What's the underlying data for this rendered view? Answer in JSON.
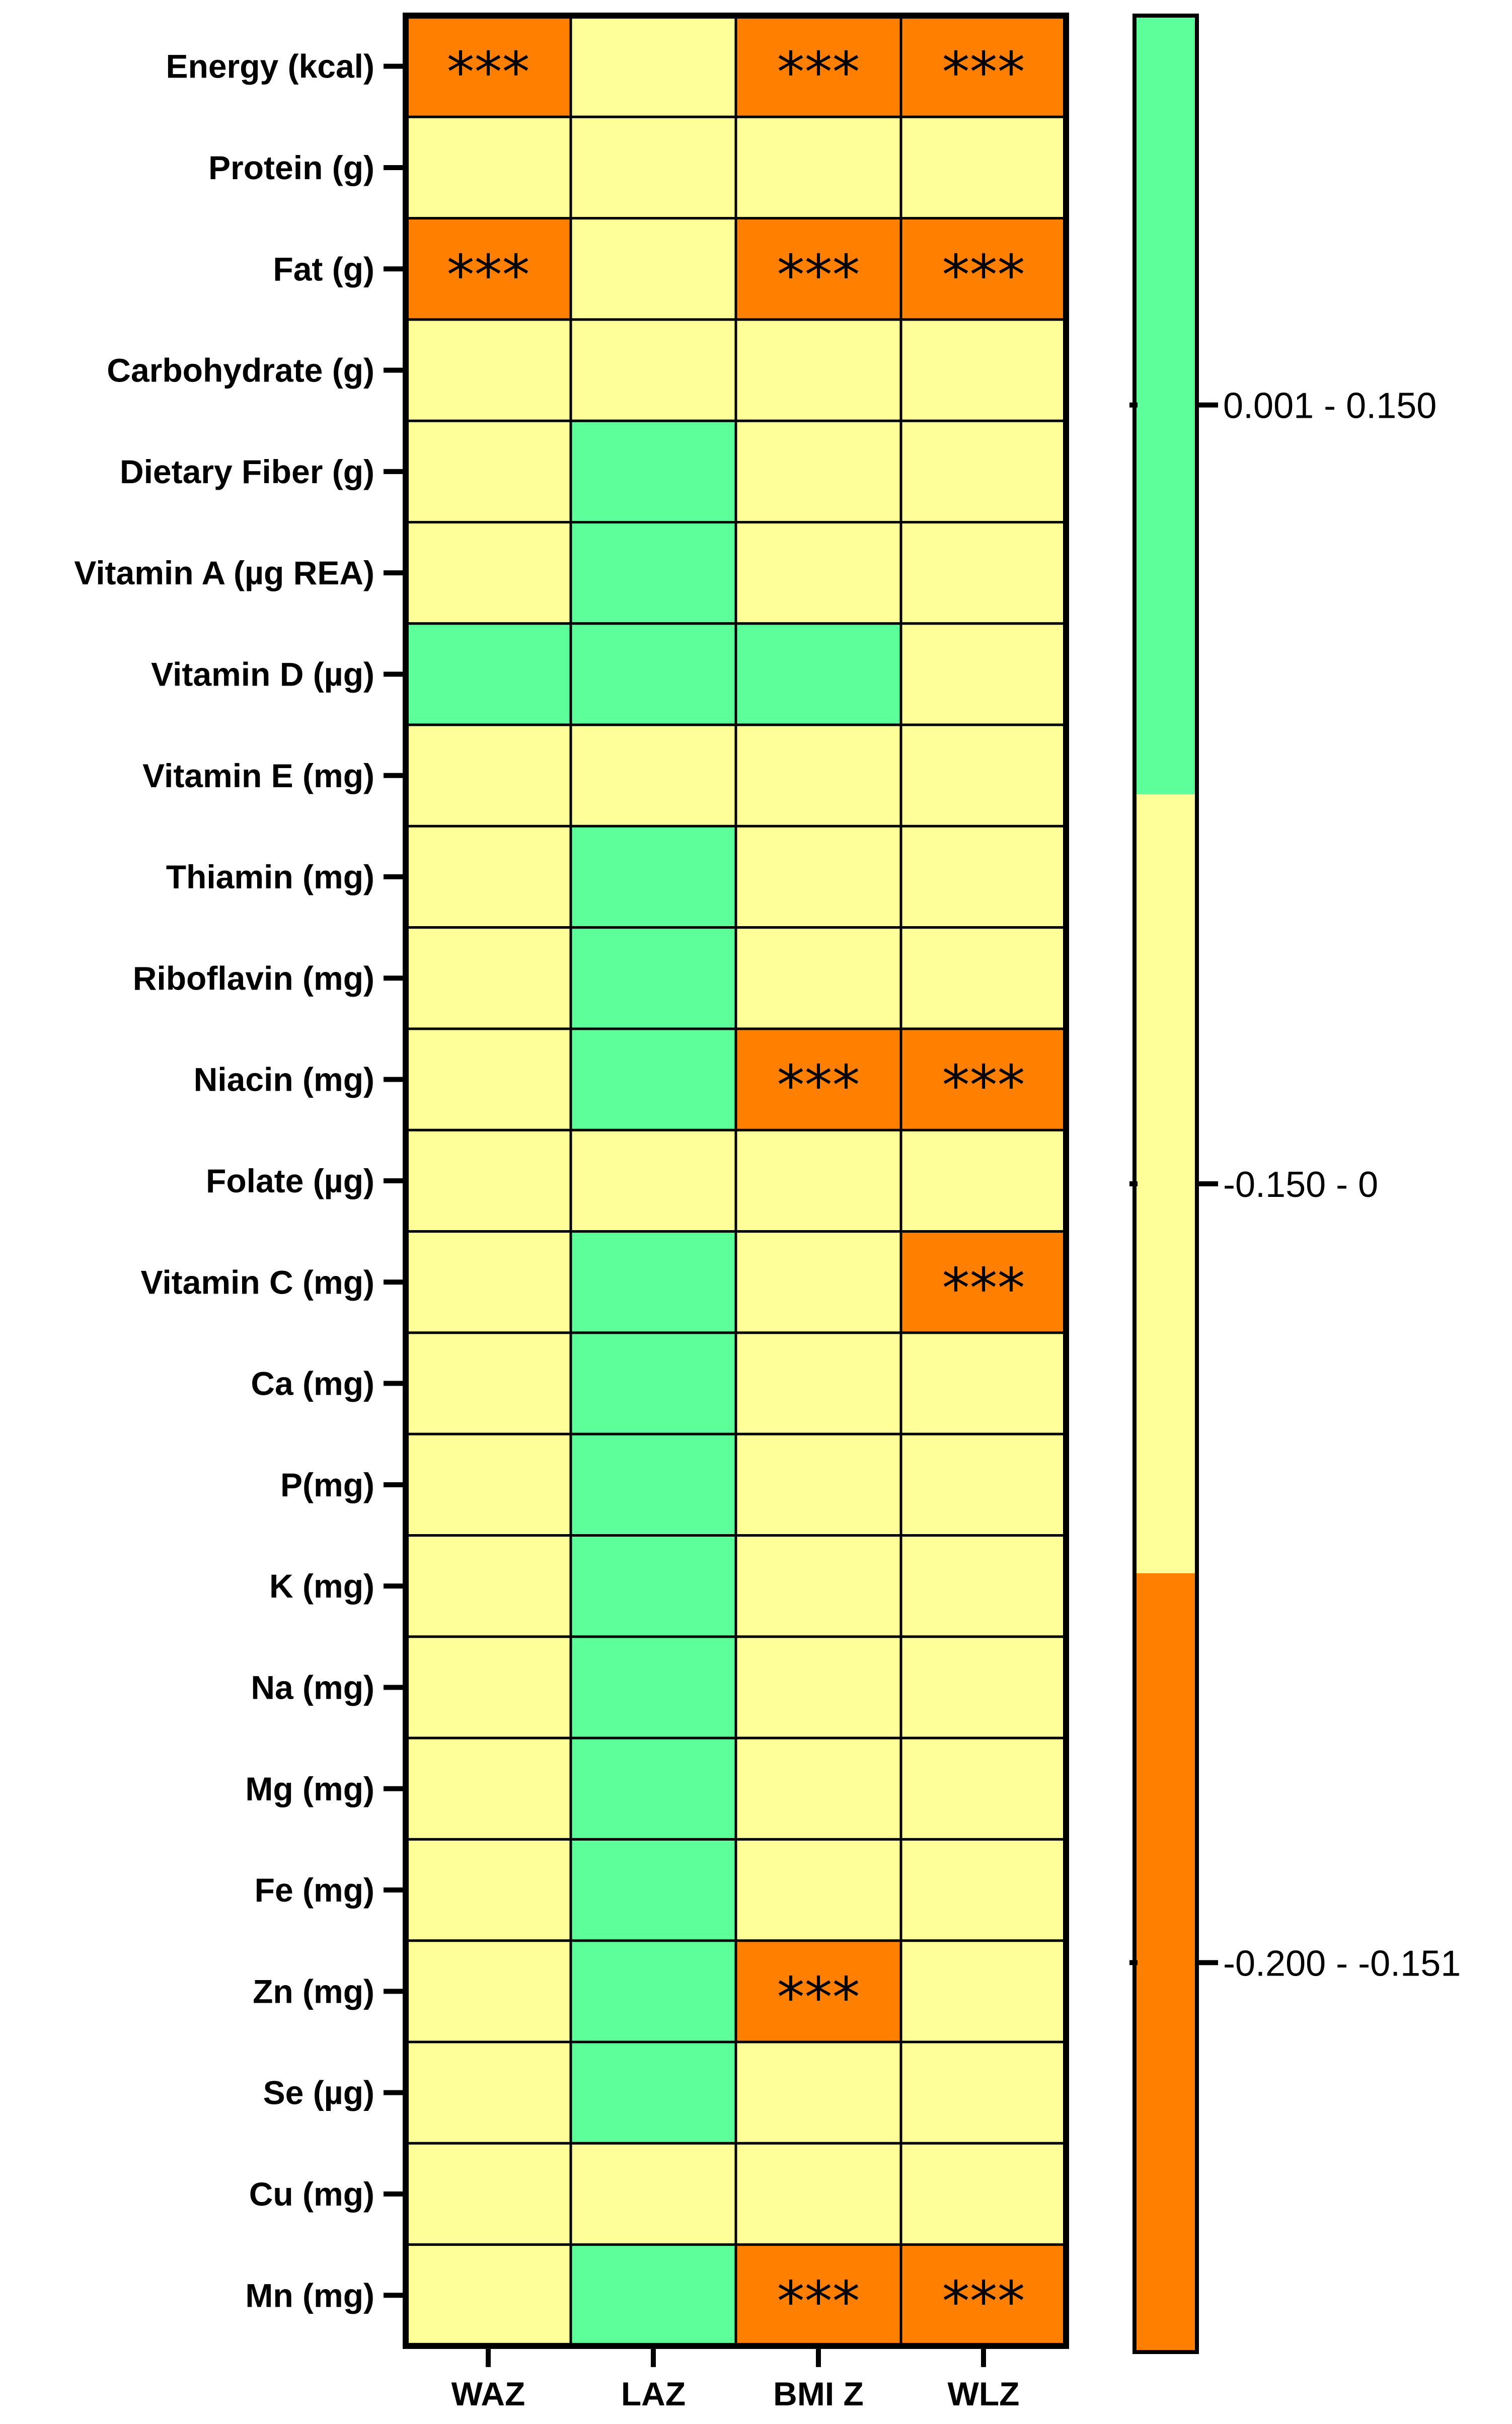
{
  "chart_data": {
    "type": "heatmap",
    "title": "",
    "xlabel": "",
    "ylabel": "",
    "columns": [
      "WAZ",
      "LAZ",
      "BMI Z",
      "WLZ"
    ],
    "rows": [
      "Energy (kcal)",
      "Protein (g)",
      "Fat (g)",
      "Carbohydrate (g)",
      "Dietary Fiber (g)",
      "Vitamin A (µg REA)",
      "Vitamin D (µg)",
      "Vitamin E (mg)",
      "Thiamin (mg)",
      "Riboflavin (mg)",
      "Niacin (mg)",
      "Folate (µg)",
      "Vitamin C (mg)",
      "Ca (mg)",
      "P(mg)",
      "K (mg)",
      "Na (mg)",
      "Mg (mg)",
      "Fe (mg)",
      "Zn (mg)",
      "Se (µg)",
      "Cu (mg)",
      "Mn (mg)"
    ],
    "cells": [
      [
        "low",
        "mid",
        "low",
        "low"
      ],
      [
        "mid",
        "mid",
        "mid",
        "mid"
      ],
      [
        "low",
        "mid",
        "low",
        "low"
      ],
      [
        "mid",
        "mid",
        "mid",
        "mid"
      ],
      [
        "mid",
        "high",
        "mid",
        "mid"
      ],
      [
        "mid",
        "high",
        "mid",
        "mid"
      ],
      [
        "high",
        "high",
        "high",
        "mid"
      ],
      [
        "mid",
        "mid",
        "mid",
        "mid"
      ],
      [
        "mid",
        "high",
        "mid",
        "mid"
      ],
      [
        "mid",
        "high",
        "mid",
        "mid"
      ],
      [
        "mid",
        "high",
        "low",
        "low"
      ],
      [
        "mid",
        "mid",
        "mid",
        "mid"
      ],
      [
        "mid",
        "high",
        "mid",
        "low"
      ],
      [
        "mid",
        "high",
        "mid",
        "mid"
      ],
      [
        "mid",
        "high",
        "mid",
        "mid"
      ],
      [
        "mid",
        "high",
        "mid",
        "mid"
      ],
      [
        "mid",
        "high",
        "mid",
        "mid"
      ],
      [
        "mid",
        "high",
        "mid",
        "mid"
      ],
      [
        "mid",
        "high",
        "mid",
        "mid"
      ],
      [
        "mid",
        "high",
        "low",
        "mid"
      ],
      [
        "mid",
        "high",
        "mid",
        "mid"
      ],
      [
        "mid",
        "mid",
        "mid",
        "mid"
      ],
      [
        "mid",
        "high",
        "low",
        "low"
      ]
    ],
    "significance": [
      [
        "***",
        "",
        "***",
        "***"
      ],
      [
        "",
        "",
        "",
        ""
      ],
      [
        "***",
        "",
        "***",
        "***"
      ],
      [
        "",
        "",
        "",
        ""
      ],
      [
        "",
        "",
        "",
        ""
      ],
      [
        "",
        "",
        "",
        ""
      ],
      [
        "",
        "",
        "",
        ""
      ],
      [
        "",
        "",
        "",
        ""
      ],
      [
        "",
        "",
        "",
        ""
      ],
      [
        "",
        "",
        "",
        ""
      ],
      [
        "",
        "",
        "***",
        "***"
      ],
      [
        "",
        "",
        "",
        ""
      ],
      [
        "",
        "",
        "",
        "***"
      ],
      [
        "",
        "",
        "",
        ""
      ],
      [
        "",
        "",
        "",
        ""
      ],
      [
        "",
        "",
        "",
        ""
      ],
      [
        "",
        "",
        "",
        ""
      ],
      [
        "",
        "",
        "",
        ""
      ],
      [
        "",
        "",
        "",
        ""
      ],
      [
        "",
        "",
        "***",
        ""
      ],
      [
        "",
        "",
        "",
        ""
      ],
      [
        "",
        "",
        "",
        ""
      ],
      [
        "",
        "",
        "***",
        "***"
      ]
    ],
    "legend": [
      {
        "key": "high",
        "label": "0.001 - 0.150",
        "range": [
          0.001,
          0.15
        ],
        "color": "#5dff9a"
      },
      {
        "key": "mid",
        "label": "-0.150 - 0",
        "range": [
          -0.15,
          0
        ],
        "color": "#ffff99"
      },
      {
        "key": "low",
        "label": "-0.200 - -0.151",
        "range": [
          -0.2,
          -0.151
        ],
        "color": "#ff8000"
      }
    ],
    "legend_position": "right"
  }
}
